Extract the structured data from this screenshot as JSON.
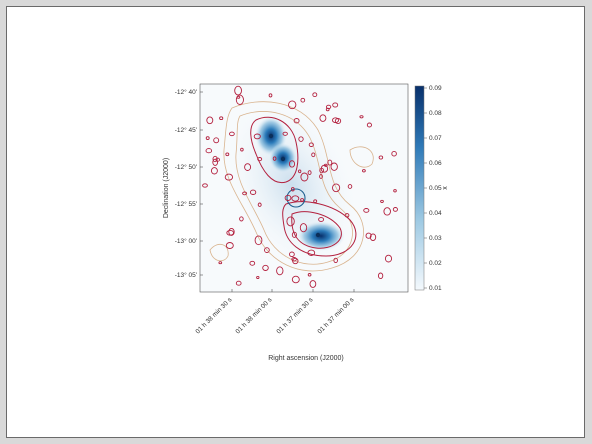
{
  "chart_data": {
    "type": "heatmap",
    "title": "",
    "xlabel": "Right ascension (J2000)",
    "ylabel": "Declination (J2000)",
    "x_ticks": [
      "01 h 38 min 30 s",
      "01 h 38 min 00 s",
      "01 h 37 min 30 s",
      "01 h 37 min 00 s"
    ],
    "y_ticks": [
      "-12° 40'",
      "-12° 45'",
      "-12° 50'",
      "-12° 55'",
      "-13° 00'",
      "-13° 05'"
    ],
    "colorbar": {
      "label": "x",
      "ticks": [
        "0.09",
        "0.08",
        "0.07",
        "0.06",
        "0.05",
        "0.04",
        "0.03",
        "0.02",
        "0.01"
      ],
      "range": [
        0.01,
        0.09
      ],
      "colormap_start": "#f4f9fd",
      "colormap_end": "#08306b"
    },
    "sources": [
      {
        "ra_s": 20,
        "dec_arcmin": -46.0,
        "peak": 0.085
      },
      {
        "ra_s": 10,
        "dec_arcmin": -50.0,
        "peak": 0.08
      },
      {
        "ra_s": -25,
        "dec_arcmin": -60.5,
        "peak": 0.078
      }
    ],
    "contour_colors": {
      "inner": "#b3203e",
      "outer": "#d9b48f",
      "ring": "#1f5f8f"
    }
  }
}
